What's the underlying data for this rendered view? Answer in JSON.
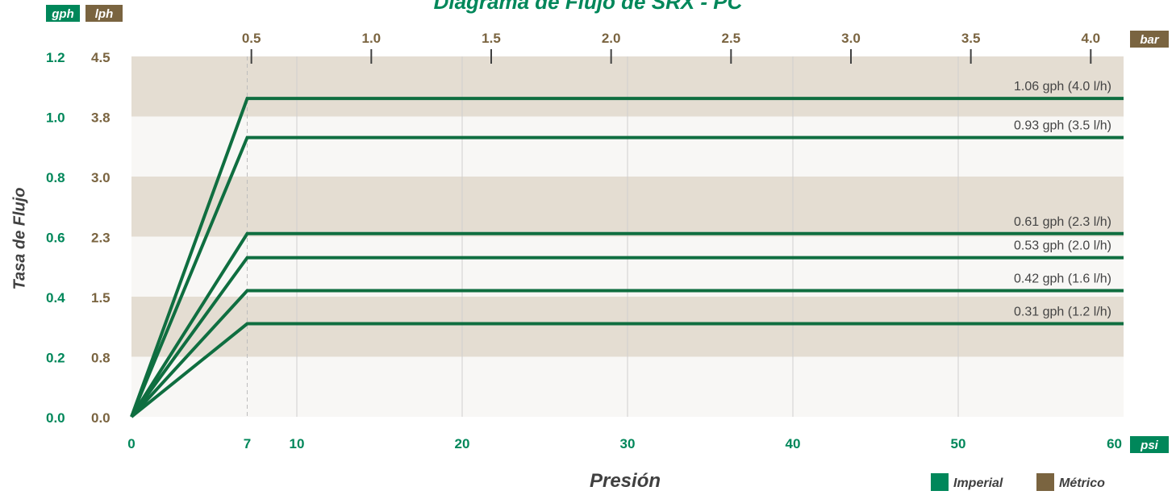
{
  "chart_data": {
    "type": "line",
    "title": "Diagrama de Flujo de SRX - PC",
    "xlabel": "Presión",
    "ylabel": "Tasa de Flujo",
    "x_unit_bottom": "psi",
    "x_unit_top": "bar",
    "y_unit_imperial": "gph",
    "y_unit_metric": "lph",
    "xlim": [
      0,
      60
    ],
    "ylim_gph": [
      0,
      1.2
    ],
    "ylim_lph": [
      0,
      4.5
    ],
    "x_ticks_psi": [
      "0",
      "7",
      "10",
      "20",
      "30",
      "40",
      "50",
      "60"
    ],
    "x_ticks_bar": [
      "0.5",
      "1.0",
      "1.5",
      "2.0",
      "2.5",
      "3.0",
      "3.5",
      "4.0"
    ],
    "y_ticks_gph": [
      "0.0",
      "0.2",
      "0.4",
      "0.6",
      "0.8",
      "1.0",
      "1.2"
    ],
    "y_ticks_lph": [
      "0.0",
      "0.8",
      "1.5",
      "2.3",
      "3.0",
      "3.8",
      "4.5"
    ],
    "grid": true,
    "legend": [
      {
        "label": "Imperial",
        "color": "#00875a"
      },
      {
        "label": "Métrico",
        "color": "#7a6440"
      }
    ],
    "series": [
      {
        "name": "1.06 gph (4.0 l/h)",
        "x": [
          0,
          7,
          60
        ],
        "y": [
          0,
          1.06,
          1.06
        ]
      },
      {
        "name": "0.93 gph (3.5 l/h)",
        "x": [
          0,
          7,
          60
        ],
        "y": [
          0,
          0.93,
          0.93
        ]
      },
      {
        "name": "0.61 gph (2.3 l/h)",
        "x": [
          0,
          7,
          60
        ],
        "y": [
          0,
          0.61,
          0.61
        ]
      },
      {
        "name": "0.53 gph (2.0 l/h)",
        "x": [
          0,
          7,
          60
        ],
        "y": [
          0,
          0.53,
          0.53
        ]
      },
      {
        "name": "0.42 gph (1.6 l/h)",
        "x": [
          0,
          7,
          60
        ],
        "y": [
          0,
          0.42,
          0.42
        ]
      },
      {
        "name": "0.31 gph (1.2 l/h)",
        "x": [
          0,
          7,
          60
        ],
        "y": [
          0,
          0.31,
          0.31
        ]
      }
    ],
    "colors": {
      "line": "#0f6e40",
      "imperial": "#00875a",
      "metric": "#7a6440",
      "band": "#e4ddd2",
      "band_light": "#f8f7f5",
      "label_text": "#444444",
      "axis_title": "#404040"
    }
  }
}
